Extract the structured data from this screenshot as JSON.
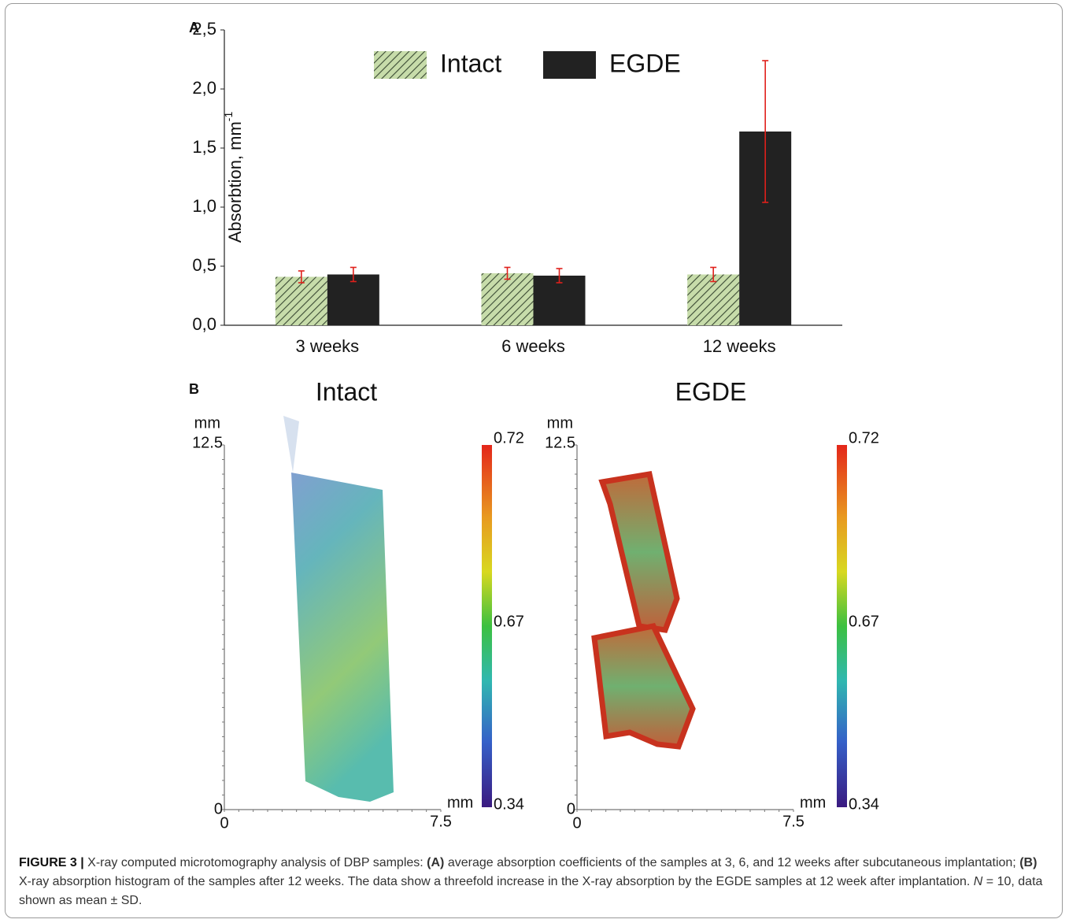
{
  "chart_data": {
    "type": "bar",
    "panel": "A",
    "categories": [
      "3 weeks",
      "6 weeks",
      "12 weeks"
    ],
    "series": [
      {
        "name": "Intact",
        "color": "#c7dcaa",
        "values": [
          0.41,
          0.44,
          0.43
        ],
        "errors": [
          0.05,
          0.05,
          0.06
        ]
      },
      {
        "name": "EGDE",
        "color": "#222222",
        "values": [
          0.43,
          0.42,
          1.64
        ],
        "errors": [
          0.06,
          0.06,
          0.6
        ]
      }
    ],
    "error_color": "#e0201b",
    "y_label": "Absorbtion, mm",
    "y_label_sup": "-1",
    "ylim": [
      0,
      2.5
    ],
    "yticks": [
      {
        "value": 0,
        "label": "0,0"
      },
      {
        "value": 0.5,
        "label": "0,5"
      },
      {
        "value": 1,
        "label": "1,0"
      },
      {
        "value": 1.5,
        "label": "1,5"
      },
      {
        "value": 2,
        "label": "2,0"
      },
      {
        "value": 2.5,
        "label": "2,5"
      }
    ],
    "legend": "top"
  },
  "panel_b": {
    "label": "B",
    "images": [
      {
        "title": "Intact",
        "y_unit": "mm",
        "y_max": "12.5",
        "y_min": "0",
        "x_min": "0",
        "x_max": "7.5",
        "x_unit": "mm",
        "colorbar": [
          "0.72",
          "0.67",
          "0.34"
        ]
      },
      {
        "title": "EGDE",
        "y_unit": "mm",
        "y_max": "12.5",
        "y_min": "0",
        "x_min": "0",
        "x_max": "7.5",
        "x_unit": "mm",
        "colorbar": [
          "0.72",
          "0.67",
          "0.34"
        ]
      }
    ]
  },
  "caption": [
    "FIGURE 3 |",
    " X-ray computed microtomography analysis of DBP samples: ",
    "(A)",
    " average absorption coefficients of the samples at 3, 6, and 12 weeks after subcutaneous implantation; ",
    "(B)",
    " X-ray absorption histogram of the samples after 12 weeks. The data show a threefold increase in the X-ray absorption by the EGDE samples at 12 week after implantation. ",
    "N",
    " = 10, data shown as mean ± SD."
  ]
}
